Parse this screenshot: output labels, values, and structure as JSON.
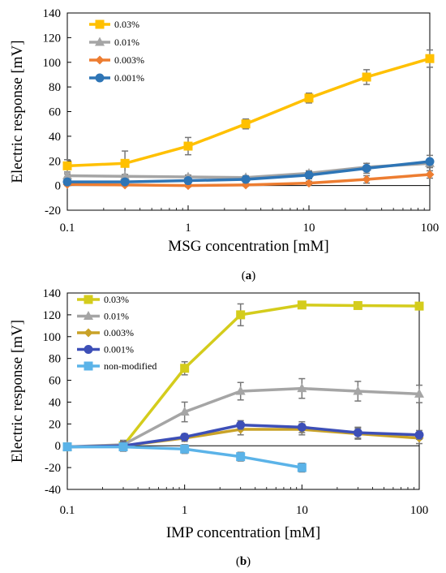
{
  "chart_data": [
    {
      "type": "line",
      "panel_label": "(a)",
      "panel_letter": "a",
      "xlabel": "MSG concentration [mM]",
      "ylabel": "Electric response [mV]",
      "x_scale": "log",
      "xlim": [
        0.1,
        100
      ],
      "ylim": [
        -20,
        140
      ],
      "x_ticks": [
        0.1,
        1,
        10,
        100
      ],
      "x_tick_labels": [
        "0.1",
        "1",
        "10",
        "100"
      ],
      "y_ticks": [
        -20,
        0,
        20,
        40,
        60,
        80,
        100,
        120,
        140
      ],
      "y_tick_labels": [
        "-20",
        "0",
        "20",
        "40",
        "60",
        "80",
        "100",
        "120",
        "140"
      ],
      "grid": false,
      "legend": "top-left",
      "x": [
        0.1,
        0.3,
        1,
        3,
        10,
        30,
        100
      ],
      "series": [
        {
          "name": "0.03%",
          "color": "#FFC000",
          "marker": "square",
          "values": [
            16,
            18,
            32,
            50,
            71,
            88,
            103
          ],
          "errors": [
            5,
            10,
            7,
            4,
            4,
            6,
            7
          ]
        },
        {
          "name": "0.01%",
          "color": "#A5A5A5",
          "marker": "triangle",
          "values": [
            8,
            7.5,
            7,
            6.5,
            10,
            15,
            18
          ],
          "errors": [
            1.5,
            1.5,
            1.5,
            1.5,
            2,
            3,
            3
          ]
        },
        {
          "name": "0.003%",
          "color": "#ED7D31",
          "marker": "diamond",
          "values": [
            1,
            0.5,
            0,
            0.5,
            2,
            5,
            9
          ],
          "errors": [
            1,
            1,
            1,
            1,
            1.5,
            3,
            3
          ]
        },
        {
          "name": "0.001%",
          "color": "#2E75B6",
          "marker": "circle",
          "values": [
            3,
            3,
            4,
            5,
            8.5,
            14,
            19.5
          ],
          "errors": [
            1,
            1,
            1,
            1.5,
            3,
            4,
            5
          ]
        }
      ]
    },
    {
      "type": "line",
      "panel_label": "(b)",
      "panel_letter": "b",
      "xlabel": "IMP concentration [mM]",
      "ylabel": "Electric response [mV]",
      "x_scale": "log",
      "xlim": [
        0.1,
        100
      ],
      "ylim": [
        -40,
        140
      ],
      "x_ticks": [
        0.1,
        1,
        10,
        100
      ],
      "x_tick_labels": [
        "0.1",
        "1",
        "10",
        "100"
      ],
      "y_ticks": [
        -40,
        -20,
        0,
        20,
        40,
        60,
        80,
        100,
        120,
        140
      ],
      "y_tick_labels": [
        "-40",
        "-20",
        "0",
        "20",
        "40",
        "60",
        "80",
        "100",
        "120",
        "140"
      ],
      "grid": false,
      "legend": "top-left",
      "x": [
        0.1,
        0.3,
        1,
        3,
        10,
        30,
        100
      ],
      "series": [
        {
          "name": "0.03%",
          "color": "#D4CC1C",
          "marker": "square",
          "values": [
            -1,
            0,
            71,
            120,
            129,
            128.5,
            128
          ],
          "errors": [
            2,
            4,
            6,
            10,
            3,
            2,
            2
          ]
        },
        {
          "name": "0.01%",
          "color": "#A5A5A5",
          "marker": "triangle",
          "values": [
            -1,
            1,
            31,
            50,
            52.5,
            50,
            47.5
          ],
          "errors": [
            2,
            4,
            9,
            8,
            9,
            9,
            8
          ]
        },
        {
          "name": "0.003%",
          "color": "#C9A227",
          "marker": "diamond",
          "values": [
            -1,
            0,
            7,
            15,
            15,
            11,
            7
          ],
          "errors": [
            2,
            4,
            3,
            5,
            5,
            5,
            5
          ]
        },
        {
          "name": "0.001%",
          "color": "#3D4FB7",
          "marker": "circle",
          "values": [
            -1,
            0,
            8,
            19,
            17,
            12,
            10
          ],
          "errors": [
            2,
            4,
            3,
            4,
            5,
            5,
            4
          ]
        },
        {
          "name": "non-modified",
          "color": "#5BB3E8",
          "marker": "square",
          "x": [
            0.1,
            0.3,
            1,
            3,
            10
          ],
          "values": [
            -1,
            -1,
            -3,
            -10,
            -20
          ],
          "errors": [
            3,
            4,
            4,
            4,
            4
          ]
        }
      ]
    }
  ]
}
